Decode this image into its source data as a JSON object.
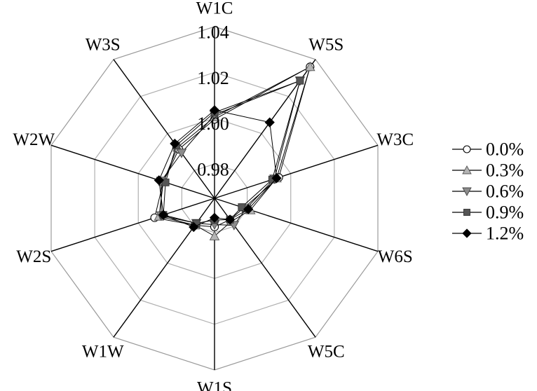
{
  "chart_data": {
    "type": "radar",
    "axes": [
      "W1C",
      "W5S",
      "W3C",
      "W6S",
      "W5C",
      "W1S",
      "W1W",
      "W2S",
      "W2W",
      "W3S"
    ],
    "ticks": [
      "0.98",
      "1.00",
      "1.02",
      "1.04"
    ],
    "rlim": [
      0.965,
      1.04
    ],
    "grid": true,
    "legend_position": "right",
    "series": [
      {
        "name": "0.0%",
        "marker": "circle-open",
        "color": "#ffffff",
        "values": [
          0.9995,
          1.036,
          0.9945,
          0.9785,
          0.9765,
          0.9775,
          0.9795,
          0.9925,
          0.9885,
          0.9915
        ]
      },
      {
        "name": "0.3%",
        "marker": "triangle-up",
        "color": "#b4b4b4",
        "values": [
          1.0005,
          1.036,
          0.9935,
          0.9815,
          0.9775,
          0.9815,
          0.9795,
          0.9905,
          0.9885,
          0.9925
        ]
      },
      {
        "name": "0.6%",
        "marker": "triangle-down",
        "color": "#8c8c8c",
        "values": [
          1.0015,
          1.0285,
          0.9925,
          0.9795,
          0.9795,
          0.9765,
          0.9785,
          0.9895,
          0.9895,
          0.9895
        ]
      },
      {
        "name": "0.9%",
        "marker": "square",
        "color": "#555555",
        "values": [
          1.0025,
          1.0285,
          0.9915,
          0.9775,
          0.9765,
          0.9745,
          0.9785,
          0.9885,
          0.9875,
          0.9935
        ]
      },
      {
        "name": "1.2%",
        "marker": "diamond",
        "color": "#000000",
        "values": [
          1.0035,
          1.006,
          0.9935,
          0.9805,
          0.9765,
          0.9735,
          0.9805,
          0.9885,
          0.9905,
          0.9945
        ]
      }
    ]
  }
}
